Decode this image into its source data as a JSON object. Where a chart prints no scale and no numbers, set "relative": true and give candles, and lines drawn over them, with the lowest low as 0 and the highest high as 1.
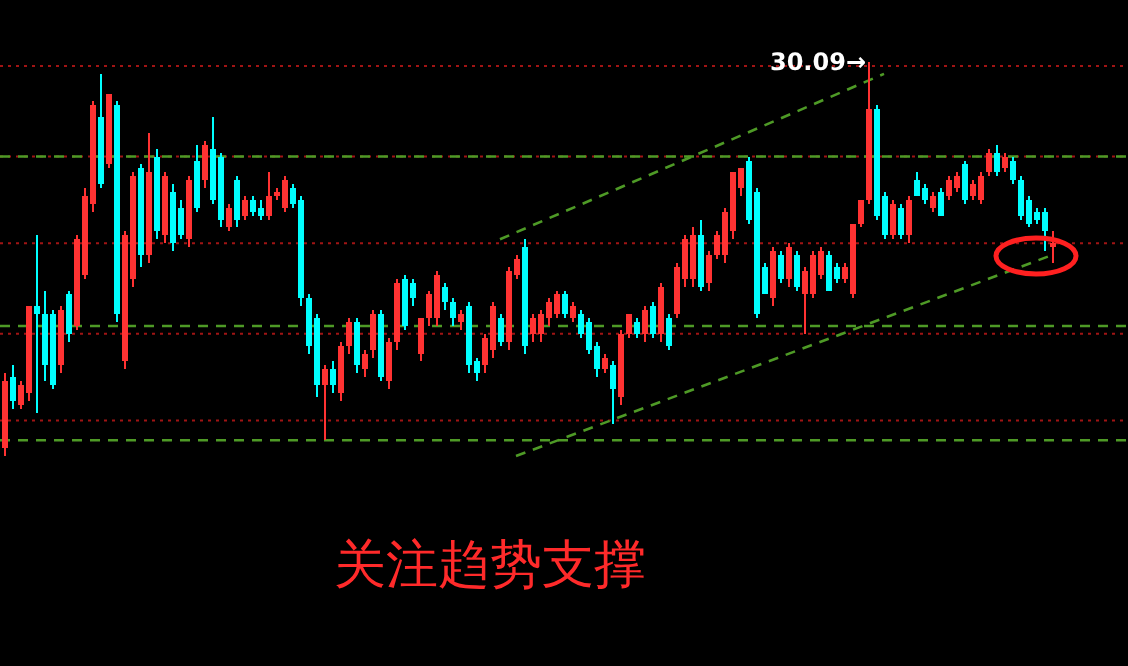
{
  "chart_data": {
    "type": "candlestick",
    "relative": true,
    "categories": [
      null,
      null,
      null,
      null,
      null,
      null,
      null,
      null,
      null,
      null,
      null,
      null,
      null,
      null,
      null,
      null,
      null,
      null,
      null,
      null,
      null,
      null,
      null,
      null,
      null,
      null,
      null,
      null,
      null,
      null,
      null,
      null,
      null,
      null,
      null,
      null,
      null,
      null,
      null,
      null,
      null,
      null,
      null,
      null,
      null,
      null,
      null,
      null,
      null,
      null,
      null,
      null,
      null,
      null,
      null,
      null,
      null,
      null,
      null,
      null,
      null,
      null,
      null,
      null,
      null,
      null,
      null,
      null,
      null,
      null,
      null,
      null,
      null,
      null,
      null,
      null,
      null,
      null,
      null,
      null,
      null,
      null,
      null,
      null,
      null,
      null,
      null,
      null,
      null,
      null,
      null,
      null,
      null,
      null,
      null,
      null,
      null,
      null,
      null,
      null,
      null,
      null,
      null,
      null,
      null,
      null,
      null,
      null,
      null,
      null,
      null,
      null,
      null,
      null,
      null,
      null,
      null,
      null,
      null,
      null,
      null,
      null,
      null,
      null,
      null,
      null,
      null,
      null,
      null,
      null,
      null,
      null
    ],
    "ohlc": [
      [
        0.02,
        0.21,
        0.0,
        0.19
      ],
      [
        0.2,
        0.23,
        0.12,
        0.14
      ],
      [
        0.13,
        0.19,
        0.12,
        0.18
      ],
      [
        0.16,
        0.38,
        0.14,
        0.38
      ],
      [
        0.38,
        0.56,
        0.11,
        0.36
      ],
      [
        0.36,
        0.42,
        0.19,
        0.23
      ],
      [
        0.36,
        0.37,
        0.17,
        0.18
      ],
      [
        0.23,
        0.38,
        0.21,
        0.37
      ],
      [
        0.41,
        0.42,
        0.29,
        0.31
      ],
      [
        0.33,
        0.56,
        0.32,
        0.55
      ],
      [
        0.46,
        0.68,
        0.45,
        0.66
      ],
      [
        0.64,
        0.9,
        0.62,
        0.89
      ],
      [
        0.86,
        0.97,
        0.68,
        0.69
      ],
      [
        0.74,
        0.92,
        0.73,
        0.92
      ],
      [
        0.89,
        0.9,
        0.34,
        0.36
      ],
      [
        0.24,
        0.57,
        0.22,
        0.56
      ],
      [
        0.45,
        0.72,
        0.43,
        0.71
      ],
      [
        0.73,
        0.74,
        0.48,
        0.51
      ],
      [
        0.51,
        0.82,
        0.49,
        0.72
      ],
      [
        0.76,
        0.78,
        0.55,
        0.57
      ],
      [
        0.56,
        0.72,
        0.54,
        0.71
      ],
      [
        0.67,
        0.69,
        0.52,
        0.54
      ],
      [
        0.63,
        0.65,
        0.55,
        0.56
      ],
      [
        0.55,
        0.71,
        0.53,
        0.7
      ],
      [
        0.75,
        0.79,
        0.62,
        0.63
      ],
      [
        0.7,
        0.8,
        0.68,
        0.79
      ],
      [
        0.78,
        0.86,
        0.64,
        0.65
      ],
      [
        0.76,
        0.77,
        0.58,
        0.6
      ],
      [
        0.58,
        0.64,
        0.57,
        0.63
      ],
      [
        0.7,
        0.71,
        0.58,
        0.6
      ],
      [
        0.61,
        0.66,
        0.6,
        0.65
      ],
      [
        0.65,
        0.66,
        0.61,
        0.62
      ],
      [
        0.63,
        0.65,
        0.6,
        0.61
      ],
      [
        0.61,
        0.72,
        0.6,
        0.66
      ],
      [
        0.66,
        0.68,
        0.65,
        0.67
      ],
      [
        0.63,
        0.71,
        0.62,
        0.7
      ],
      [
        0.68,
        0.69,
        0.63,
        0.64
      ],
      [
        0.65,
        0.66,
        0.38,
        0.4
      ],
      [
        0.4,
        0.41,
        0.26,
        0.28
      ],
      [
        0.35,
        0.36,
        0.15,
        0.18
      ],
      [
        0.18,
        0.23,
        0.04,
        0.22
      ],
      [
        0.22,
        0.24,
        0.16,
        0.18
      ],
      [
        0.16,
        0.29,
        0.14,
        0.28
      ],
      [
        0.28,
        0.35,
        0.26,
        0.34
      ],
      [
        0.34,
        0.35,
        0.21,
        0.23
      ],
      [
        0.22,
        0.27,
        0.2,
        0.26
      ],
      [
        0.27,
        0.37,
        0.25,
        0.36
      ],
      [
        0.36,
        0.37,
        0.19,
        0.2
      ],
      [
        0.19,
        0.3,
        0.17,
        0.29
      ],
      [
        0.29,
        0.45,
        0.27,
        0.44
      ],
      [
        0.45,
        0.46,
        0.32,
        0.33
      ],
      [
        0.44,
        0.45,
        0.38,
        0.4
      ],
      [
        0.26,
        0.35,
        0.24,
        0.35
      ],
      [
        0.35,
        0.42,
        0.33,
        0.41
      ],
      [
        0.35,
        0.47,
        0.33,
        0.46
      ],
      [
        0.43,
        0.44,
        0.37,
        0.39
      ],
      [
        0.39,
        0.4,
        0.33,
        0.35
      ],
      [
        0.34,
        0.37,
        0.32,
        0.36
      ],
      [
        0.38,
        0.39,
        0.21,
        0.23
      ],
      [
        0.24,
        0.25,
        0.19,
        0.21
      ],
      [
        0.23,
        0.31,
        0.21,
        0.3
      ],
      [
        0.27,
        0.39,
        0.25,
        0.38
      ],
      [
        0.35,
        0.36,
        0.28,
        0.29
      ],
      [
        0.29,
        0.48,
        0.27,
        0.47
      ],
      [
        0.46,
        0.51,
        0.45,
        0.5
      ],
      [
        0.53,
        0.55,
        0.26,
        0.28
      ],
      [
        0.31,
        0.36,
        0.29,
        0.35
      ],
      [
        0.31,
        0.37,
        0.29,
        0.36
      ],
      [
        0.35,
        0.4,
        0.33,
        0.39
      ],
      [
        0.36,
        0.42,
        0.35,
        0.41
      ],
      [
        0.41,
        0.42,
        0.35,
        0.36
      ],
      [
        0.35,
        0.39,
        0.34,
        0.38
      ],
      [
        0.36,
        0.37,
        0.3,
        0.31
      ],
      [
        0.34,
        0.35,
        0.26,
        0.27
      ],
      [
        0.28,
        0.29,
        0.2,
        0.22
      ],
      [
        0.22,
        0.26,
        0.21,
        0.25
      ],
      [
        0.23,
        0.24,
        0.08,
        0.17
      ],
      [
        0.15,
        0.32,
        0.13,
        0.31
      ],
      [
        0.31,
        0.36,
        0.3,
        0.36
      ],
      [
        0.34,
        0.35,
        0.3,
        0.31
      ],
      [
        0.31,
        0.38,
        0.29,
        0.37
      ],
      [
        0.38,
        0.39,
        0.3,
        0.31
      ],
      [
        0.31,
        0.44,
        0.29,
        0.43
      ],
      [
        0.35,
        0.36,
        0.27,
        0.28
      ],
      [
        0.36,
        0.49,
        0.35,
        0.48
      ],
      [
        0.45,
        0.56,
        0.43,
        0.55
      ],
      [
        0.45,
        0.58,
        0.43,
        0.56
      ],
      [
        0.56,
        0.6,
        0.42,
        0.43
      ],
      [
        0.44,
        0.52,
        0.42,
        0.51
      ],
      [
        0.51,
        0.57,
        0.5,
        0.56
      ],
      [
        0.51,
        0.63,
        0.49,
        0.62
      ],
      [
        0.57,
        0.72,
        0.55,
        0.72
      ],
      [
        0.68,
        0.73,
        0.66,
        0.73
      ],
      [
        0.75,
        0.76,
        0.59,
        0.6
      ],
      [
        0.67,
        0.68,
        0.35,
        0.36
      ],
      [
        0.48,
        0.49,
        0.41,
        0.41
      ],
      [
        0.4,
        0.53,
        0.38,
        0.52
      ],
      [
        0.51,
        0.52,
        0.44,
        0.45
      ],
      [
        0.45,
        0.54,
        0.43,
        0.53
      ],
      [
        0.51,
        0.52,
        0.42,
        0.43
      ],
      [
        0.41,
        0.48,
        0.31,
        0.47
      ],
      [
        0.41,
        0.52,
        0.4,
        0.51
      ],
      [
        0.46,
        0.53,
        0.45,
        0.52
      ],
      [
        0.51,
        0.52,
        0.42,
        0.42
      ],
      [
        0.48,
        0.49,
        0.44,
        0.45
      ],
      [
        0.45,
        0.49,
        0.44,
        0.48
      ],
      [
        0.41,
        0.59,
        0.4,
        0.59
      ],
      [
        0.59,
        0.65,
        0.58,
        0.65
      ],
      [
        0.65,
        1.0,
        0.64,
        0.88
      ],
      [
        0.88,
        0.89,
        0.6,
        0.61
      ],
      [
        0.66,
        0.67,
        0.55,
        0.56
      ],
      [
        0.56,
        0.65,
        0.55,
        0.64
      ],
      [
        0.63,
        0.64,
        0.55,
        0.56
      ],
      [
        0.56,
        0.66,
        0.54,
        0.65
      ],
      [
        0.7,
        0.72,
        0.66,
        0.66
      ],
      [
        0.68,
        0.69,
        0.64,
        0.65
      ],
      [
        0.63,
        0.67,
        0.62,
        0.66
      ],
      [
        0.67,
        0.68,
        0.61,
        0.61
      ],
      [
        0.66,
        0.71,
        0.65,
        0.7
      ],
      [
        0.68,
        0.72,
        0.67,
        0.71
      ],
      [
        0.74,
        0.75,
        0.64,
        0.65
      ],
      [
        0.66,
        0.7,
        0.65,
        0.69
      ],
      [
        0.65,
        0.72,
        0.64,
        0.71
      ],
      [
        0.72,
        0.78,
        0.71,
        0.77
      ],
      [
        0.77,
        0.79,
        0.71,
        0.72
      ],
      [
        0.73,
        0.77,
        0.72,
        0.76
      ],
      [
        0.75,
        0.76,
        0.69,
        0.7
      ],
      [
        0.7,
        0.71,
        0.6,
        0.61
      ],
      [
        0.65,
        0.66,
        0.58,
        0.59
      ],
      [
        0.62,
        0.63,
        0.59,
        0.6
      ],
      [
        0.62,
        0.63,
        0.52,
        0.57
      ],
      [
        0.53,
        0.57,
        0.49,
        0.54
      ]
    ],
    "colors": [
      "#ff3232",
      "#00ffff",
      "#ff3232",
      "#ff3232",
      "#00ffff",
      "#00ffff",
      "#00ffff",
      "#ff3232",
      "#00ffff",
      "#ff3232",
      "#ff3232",
      "#ff3232",
      "#00ffff",
      "#ff3232",
      "#00ffff",
      "#ff3232",
      "#ff3232",
      "#00ffff",
      "#ff3232",
      "#00ffff",
      "#ff3232",
      "#00ffff",
      "#00ffff",
      "#ff3232",
      "#00ffff",
      "#ff3232",
      "#00ffff",
      "#00ffff",
      "#ff3232",
      "#00ffff",
      "#ff3232",
      "#00ffff",
      "#00ffff",
      "#ff3232",
      "#ff3232",
      "#ff3232",
      "#00ffff",
      "#00ffff",
      "#00ffff",
      "#00ffff",
      "#ff3232",
      "#00ffff",
      "#ff3232",
      "#ff3232",
      "#00ffff",
      "#ff3232",
      "#ff3232",
      "#00ffff",
      "#ff3232",
      "#ff3232",
      "#00ffff",
      "#00ffff",
      "#ff3232",
      "#ff3232",
      "#ff3232",
      "#00ffff",
      "#00ffff",
      "#ff3232",
      "#00ffff",
      "#00ffff",
      "#ff3232",
      "#ff3232",
      "#00ffff",
      "#ff3232",
      "#ff3232",
      "#00ffff",
      "#ff3232",
      "#ff3232",
      "#ff3232",
      "#ff3232",
      "#00ffff",
      "#ff3232",
      "#00ffff",
      "#00ffff",
      "#00ffff",
      "#ff3232",
      "#00ffff",
      "#ff3232",
      "#ff3232",
      "#00ffff",
      "#ff3232",
      "#00ffff",
      "#ff3232",
      "#00ffff",
      "#ff3232",
      "#ff3232",
      "#ff3232",
      "#00ffff",
      "#ff3232",
      "#ff3232",
      "#ff3232",
      "#ff3232",
      "#ff3232",
      "#00ffff",
      "#00ffff",
      "#00ffff",
      "#ff3232",
      "#00ffff",
      "#ff3232",
      "#00ffff",
      "#ff3232",
      "#ff3232",
      "#ff3232",
      "#00ffff",
      "#00ffff",
      "#ff3232",
      "#ff3232",
      "#ff3232",
      "#ff3232",
      "#00ffff",
      "#00ffff",
      "#ff3232",
      "#00ffff",
      "#ff3232",
      "#00ffff",
      "#00ffff",
      "#ff3232",
      "#00ffff",
      "#ff3232",
      "#ff3232",
      "#00ffff",
      "#ff3232",
      "#ff3232",
      "#ff3232",
      "#00ffff",
      "#ff3232",
      "#00ffff",
      "#00ffff",
      "#00ffff",
      "#00ffff",
      "#00ffff",
      "#ff3232"
    ],
    "series": [
      {
        "type": "line",
        "values": [
          null,
          null,
          null,
          null,
          null,
          null,
          null,
          null,
          null,
          null,
          null,
          null,
          null,
          null,
          null,
          null,
          null,
          null,
          null,
          null,
          null,
          null,
          null,
          null,
          null,
          null,
          null,
          null,
          null,
          null,
          null,
          null,
          null,
          null,
          null,
          null,
          null,
          null,
          null,
          null,
          null,
          null,
          null,
          null,
          null,
          null,
          null,
          null,
          null,
          null,
          null,
          null,
          null,
          null,
          null,
          null,
          null,
          null,
          null,
          null,
          null,
          null,
          0.55,
          null,
          null,
          null,
          null,
          null,
          null,
          null,
          null,
          null,
          null,
          null,
          null,
          null,
          null,
          null,
          null,
          null,
          null,
          null,
          null,
          null,
          null,
          null,
          null,
          null,
          null,
          null,
          null,
          null,
          null,
          null,
          null,
          null,
          null,
          null,
          null,
          null,
          null,
          null,
          null,
          null,
          null,
          null,
          null,
          null,
          null,
          null,
          0.97,
          null,
          null,
          null,
          null,
          null,
          null,
          null,
          null,
          null,
          null,
          null,
          null,
          null,
          null,
          null,
          null,
          null,
          null,
          null,
          null,
          null
        ],
        "color": "#4e9a26",
        "line_style": "dashed"
      },
      {
        "type": "line",
        "values": [
          null,
          null,
          null,
          null,
          null,
          null,
          null,
          null,
          null,
          null,
          null,
          null,
          null,
          null,
          null,
          null,
          null,
          null,
          null,
          null,
          null,
          null,
          null,
          null,
          null,
          null,
          null,
          null,
          null,
          null,
          null,
          null,
          null,
          null,
          null,
          null,
          null,
          null,
          null,
          null,
          null,
          null,
          null,
          null,
          null,
          null,
          null,
          null,
          null,
          null,
          null,
          null,
          null,
          null,
          null,
          null,
          null,
          null,
          null,
          null,
          null,
          null,
          null,
          null,
          0,
          null,
          null,
          null,
          null,
          null,
          null,
          null,
          null,
          null,
          null,
          null,
          null,
          null,
          null,
          null,
          null,
          null,
          null,
          null,
          null,
          null,
          null,
          null,
          null,
          null,
          null,
          null,
          null,
          null,
          null,
          null,
          null,
          null,
          null,
          null,
          null,
          null,
          null,
          null,
          null,
          null,
          null,
          null,
          null,
          null,
          null,
          null,
          null,
          null,
          null,
          null,
          null,
          null,
          null,
          null,
          null,
          null,
          null,
          null,
          null,
          null,
          null,
          null,
          null,
          null,
          null,
          0.51
        ],
        "color": "#4e9a26",
        "line_style": "dashed"
      }
    ],
    "ref_lines": [
      {
        "axis": "y",
        "value": 0.99,
        "color": "#a01414",
        "line_style": "dotted"
      },
      {
        "axis": "y",
        "value": 0.76,
        "color": "#a01414",
        "line_style": "dotted"
      },
      {
        "axis": "y",
        "value": 0.54,
        "color": "#a01414",
        "line_style": "dotted"
      },
      {
        "axis": "y",
        "value": 0.31,
        "color": "#a01414",
        "line_style": "dotted"
      },
      {
        "axis": "y",
        "value": 0.09,
        "color": "#a01414",
        "line_style": "dotted"
      },
      {
        "axis": "y",
        "value": 0.76,
        "color": "#4e9a26",
        "line_style": "dashed"
      },
      {
        "axis": "y",
        "value": 0.33,
        "color": "#4e9a26",
        "line_style": "dashed"
      },
      {
        "axis": "y",
        "value": 0.04,
        "color": "#4e9a26",
        "line_style": "dashed"
      }
    ],
    "annotations": [
      {
        "text": "30.09→",
        "y": 1
      },
      "关注趋势支撑"
    ]
  }
}
